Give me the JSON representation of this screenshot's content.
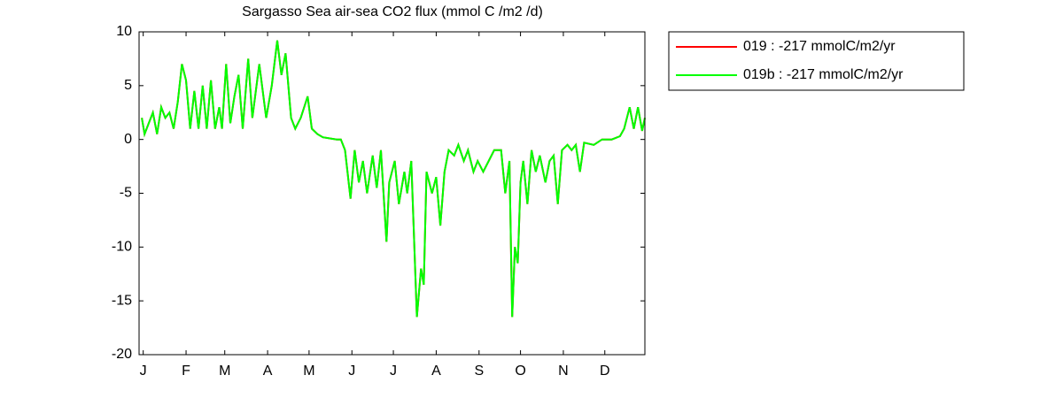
{
  "chart_data": {
    "type": "line",
    "title": "Sargasso Sea  air-sea CO2 flux (mmol C /m2 /d)",
    "x": [
      0,
      2,
      5,
      8,
      11,
      14,
      17,
      20,
      23,
      26,
      29,
      32,
      35,
      38,
      41,
      44,
      47,
      50,
      53,
      56,
      58,
      61,
      64,
      67,
      70,
      73,
      77,
      80,
      85,
      90,
      94,
      98,
      101,
      104,
      108,
      111,
      115,
      120,
      123,
      127,
      131,
      141,
      144,
      147,
      151,
      154,
      157,
      160,
      163,
      167,
      170,
      173,
      177,
      179,
      183,
      186,
      190,
      192,
      195,
      199,
      202,
      204,
      206,
      210,
      213,
      216,
      219,
      222,
      226,
      229,
      233,
      236,
      240,
      243,
      247,
      251,
      255,
      260,
      263,
      266,
      268,
      270,
      272,
      274,
      276,
      279,
      282,
      285,
      288,
      292,
      295,
      298,
      301,
      304,
      308,
      311,
      314,
      317,
      320,
      327,
      333,
      340,
      346,
      349,
      353,
      356,
      359,
      362,
      364
    ],
    "series": [
      {
        "name": "019 : -217 mmolC/m2/yr",
        "color": "#ff0000",
        "values": [
          2,
          0.5,
          1.5,
          2.5,
          0.5,
          3,
          2,
          2.5,
          1,
          3.5,
          7,
          5.5,
          1,
          4.5,
          1,
          5,
          1,
          5.5,
          1,
          3,
          1,
          7,
          1.5,
          4,
          6,
          1,
          7.5,
          2,
          7,
          2,
          5,
          9.2,
          6,
          8,
          2,
          1,
          2,
          4,
          1,
          0.5,
          0.2,
          0,
          0,
          -1,
          -5.5,
          -1,
          -4,
          -2,
          -5,
          -1.5,
          -4.5,
          -1,
          -9.5,
          -4,
          -2,
          -6,
          -3,
          -5,
          -2,
          -16.5,
          -12,
          -13.5,
          -3,
          -5,
          -3.5,
          -8,
          -3,
          -1,
          -1.5,
          -0.5,
          -2,
          -1,
          -3,
          -2,
          -3,
          -2,
          -1,
          -1,
          -5,
          -2,
          -16.5,
          -10,
          -11.5,
          -4,
          -2,
          -6,
          -1,
          -3,
          -1.5,
          -4,
          -2,
          -1.5,
          -6,
          -1,
          -0.5,
          -1,
          -0.5,
          -3,
          -0.3,
          -0.5,
          0,
          0,
          0.3,
          1,
          3,
          1,
          3,
          0.8,
          2
        ]
      },
      {
        "name": "019b : -217 mmolC/m2/yr",
        "color": "#00ff00",
        "values": [
          2,
          0.5,
          1.5,
          2.5,
          0.5,
          3,
          2,
          2.5,
          1,
          3.5,
          7,
          5.5,
          1,
          4.5,
          1,
          5,
          1,
          5.5,
          1,
          3,
          1,
          7,
          1.5,
          4,
          6,
          1,
          7.5,
          2,
          7,
          2,
          5,
          9.2,
          6,
          8,
          2,
          1,
          2,
          4,
          1,
          0.5,
          0.2,
          0,
          0,
          -1,
          -5.5,
          -1,
          -4,
          -2,
          -5,
          -1.5,
          -4.5,
          -1,
          -9.5,
          -4,
          -2,
          -6,
          -3,
          -5,
          -2,
          -16.5,
          -12,
          -13.5,
          -3,
          -5,
          -3.5,
          -8,
          -3,
          -1,
          -1.5,
          -0.5,
          -2,
          -1,
          -3,
          -2,
          -3,
          -2,
          -1,
          -1,
          -5,
          -2,
          -16.5,
          -10,
          -11.5,
          -4,
          -2,
          -6,
          -1,
          -3,
          -1.5,
          -4,
          -2,
          -1.5,
          -6,
          -1,
          -0.5,
          -1,
          -0.5,
          -3,
          -0.3,
          -0.5,
          0,
          0,
          0.3,
          1,
          3,
          1,
          3,
          0.8,
          2
        ]
      }
    ],
    "xlim": [
      -2,
      364
    ],
    "xticks": [
      {
        "value": 1,
        "label": "J"
      },
      {
        "value": 32,
        "label": "F"
      },
      {
        "value": 60,
        "label": "M"
      },
      {
        "value": 91,
        "label": "A"
      },
      {
        "value": 121,
        "label": "M"
      },
      {
        "value": 152,
        "label": "J"
      },
      {
        "value": 182,
        "label": "J"
      },
      {
        "value": 213,
        "label": "A"
      },
      {
        "value": 244,
        "label": "S"
      },
      {
        "value": 274,
        "label": "O"
      },
      {
        "value": 305,
        "label": "N"
      },
      {
        "value": 335,
        "label": "D"
      }
    ],
    "ylim": [
      -20,
      10
    ],
    "yticks": [
      10,
      5,
      0,
      -5,
      -10,
      -15,
      -20
    ],
    "legend": "outside-right",
    "grid": false
  }
}
